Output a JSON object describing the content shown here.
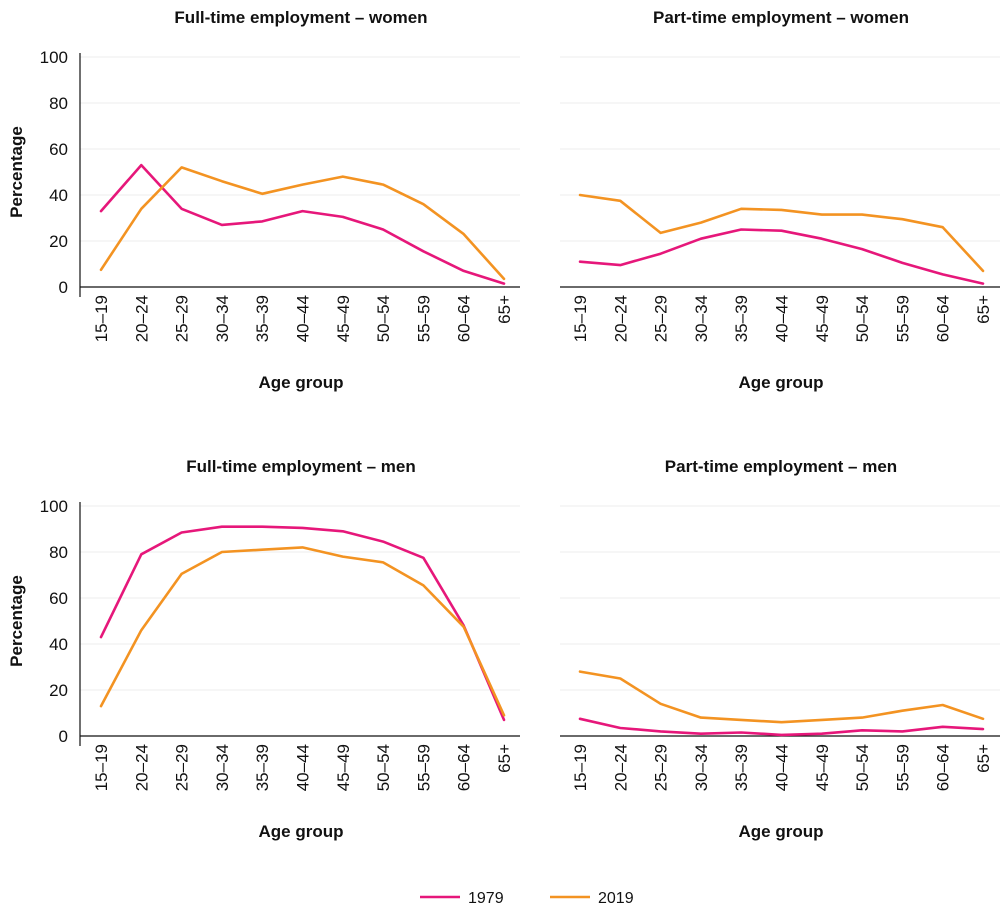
{
  "chart_data": [
    {
      "type": "line",
      "title": "Full-time employment – women",
      "xlabel": "Age group",
      "ylabel": "Percentage",
      "ylim": [
        0,
        100
      ],
      "yticks": [
        0,
        20,
        40,
        60,
        80,
        100
      ],
      "categories": [
        "15–19",
        "20–24",
        "25–29",
        "30–34",
        "35–39",
        "40–44",
        "45–49",
        "50–54",
        "55–59",
        "60–64",
        "65+"
      ],
      "grid": true,
      "show_y_labels": true,
      "series": [
        {
          "name": "1979",
          "color": "#e6177a",
          "values": [
            33,
            53,
            34,
            27,
            28.5,
            33,
            30.5,
            25,
            15.5,
            7,
            1.5
          ]
        },
        {
          "name": "2019",
          "color": "#f39322",
          "values": [
            7.5,
            34,
            52,
            46,
            40.5,
            44.5,
            48,
            44.5,
            36,
            23,
            3.5
          ]
        }
      ]
    },
    {
      "type": "line",
      "title": "Part-time employment – women",
      "xlabel": "Age group",
      "ylabel": "",
      "ylim": [
        0,
        100
      ],
      "yticks": [
        0,
        20,
        40,
        60,
        80,
        100
      ],
      "categories": [
        "15–19",
        "20–24",
        "25–29",
        "30–34",
        "35–39",
        "40–44",
        "45–49",
        "50–54",
        "55–59",
        "60–64",
        "65+"
      ],
      "grid": true,
      "show_y_labels": false,
      "series": [
        {
          "name": "1979",
          "color": "#e6177a",
          "values": [
            11,
            9.5,
            14.5,
            21,
            25,
            24.5,
            21,
            16.5,
            10.5,
            5.5,
            1.5
          ]
        },
        {
          "name": "2019",
          "color": "#f39322",
          "values": [
            40,
            37.5,
            23.5,
            28,
            34,
            33.5,
            31.5,
            31.5,
            29.5,
            26,
            7
          ]
        }
      ]
    },
    {
      "type": "line",
      "title": "Full-time employment – men",
      "xlabel": "Age group",
      "ylabel": "Percentage",
      "ylim": [
        0,
        100
      ],
      "yticks": [
        0,
        20,
        40,
        60,
        80,
        100
      ],
      "categories": [
        "15–19",
        "20–24",
        "25–29",
        "30–34",
        "35–39",
        "40–44",
        "45–49",
        "50–54",
        "55–59",
        "60–64",
        "65+"
      ],
      "grid": true,
      "show_y_labels": true,
      "series": [
        {
          "name": "1979",
          "color": "#e6177a",
          "values": [
            43,
            79,
            88.5,
            91,
            91,
            90.5,
            89,
            84.5,
            77.5,
            48,
            7
          ]
        },
        {
          "name": "2019",
          "color": "#f39322",
          "values": [
            13,
            46,
            70.5,
            80,
            81,
            82,
            78,
            75.5,
            65.5,
            47.5,
            9
          ]
        }
      ]
    },
    {
      "type": "line",
      "title": "Part-time employment – men",
      "xlabel": "Age group",
      "ylabel": "",
      "ylim": [
        0,
        100
      ],
      "yticks": [
        0,
        20,
        40,
        60,
        80,
        100
      ],
      "categories": [
        "15–19",
        "20–24",
        "25–29",
        "30–34",
        "35–39",
        "40–44",
        "45–49",
        "50–54",
        "55–59",
        "60–64",
        "65+"
      ],
      "grid": true,
      "show_y_labels": false,
      "series": [
        {
          "name": "1979",
          "color": "#e6177a",
          "values": [
            7.5,
            3.5,
            2,
            1,
            1.5,
            0.5,
            1,
            2.5,
            2,
            4,
            3
          ]
        },
        {
          "name": "2019",
          "color": "#f39322",
          "values": [
            28,
            25,
            14,
            8,
            7,
            6,
            7,
            8,
            11,
            13.5,
            7.5
          ]
        }
      ]
    }
  ],
  "legend": {
    "placement": "bottom-center",
    "items": [
      {
        "label": "1979",
        "color": "#e6177a"
      },
      {
        "label": "2019",
        "color": "#f39322"
      }
    ]
  }
}
